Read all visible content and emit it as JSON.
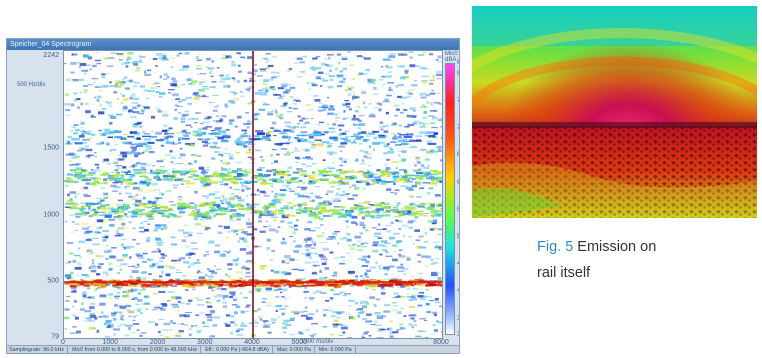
{
  "window": {
    "title": "Speicher_04 Spectrogram",
    "y_top_label": "2242",
    "y_scale": "500 Hz/div",
    "y_ticks": [
      {
        "label": "1500",
        "value": 1500
      },
      {
        "label": "1000",
        "value": 1000
      },
      {
        "label": "500",
        "value": 500
      },
      {
        "label": "79",
        "value": 79
      }
    ],
    "x_ticks": [
      {
        "label": "0",
        "value": 0
      },
      {
        "label": "1000",
        "value": 1000
      },
      {
        "label": "2000",
        "value": 2000
      },
      {
        "label": "3000",
        "value": 3000
      },
      {
        "label": "4000",
        "value": 4000
      },
      {
        "label": "5000",
        "value": 5000
      },
      {
        "label": "8000",
        "value": 8000
      }
    ],
    "x_scale": "1000 ms/div",
    "status": [
      "Samplingrate: 96.0 kHz",
      "Mic0 from 0.000 to 8.000 s, from 0.000 to 48.000 kHz",
      "Eff.: 0.000 Pa (-664.8 dBA)",
      "Max: 0.000 Pa",
      "Min: 0.000 Pa"
    ]
  },
  "colorbar": {
    "title": "Mic0 dBA",
    "ticks": [
      {
        "label": "82.0",
        "value": 82.0
      },
      {
        "label": "80.0",
        "value": 80.0
      },
      {
        "label": "75.0",
        "value": 75.0
      },
      {
        "label": "70.0",
        "value": 70.0
      },
      {
        "label": "65.0",
        "value": 65.0
      },
      {
        "label": "60.0",
        "value": 60.0
      },
      {
        "label": "55.0",
        "value": 55.0
      },
      {
        "label": "50.0",
        "value": 50.0
      },
      {
        "label": "45.0",
        "value": 45.0
      },
      {
        "label": "40.0",
        "value": 40.0
      },
      {
        "label": "35.0",
        "value": 35.0
      },
      {
        "label": "32.0",
        "value": 32.0
      }
    ],
    "range": [
      32.0,
      82.0
    ]
  },
  "spectrogram": {
    "freq_range": [
      79,
      2242
    ],
    "time_range": [
      0,
      8000
    ],
    "bands": [
      {
        "freq": 500,
        "level": "high"
      },
      {
        "freq": 1050,
        "level": "mid"
      },
      {
        "freq": 1300,
        "level": "mid"
      },
      {
        "freq": 1600,
        "level": "low"
      }
    ],
    "marker_time": 4000
  },
  "caption": {
    "fig_label": "Fig. 5",
    "text_line1": "Emission on",
    "text_line2": "rail itself"
  },
  "colors": {
    "accent": "#2d8cc8",
    "axis_text": "#3b5f8f"
  }
}
